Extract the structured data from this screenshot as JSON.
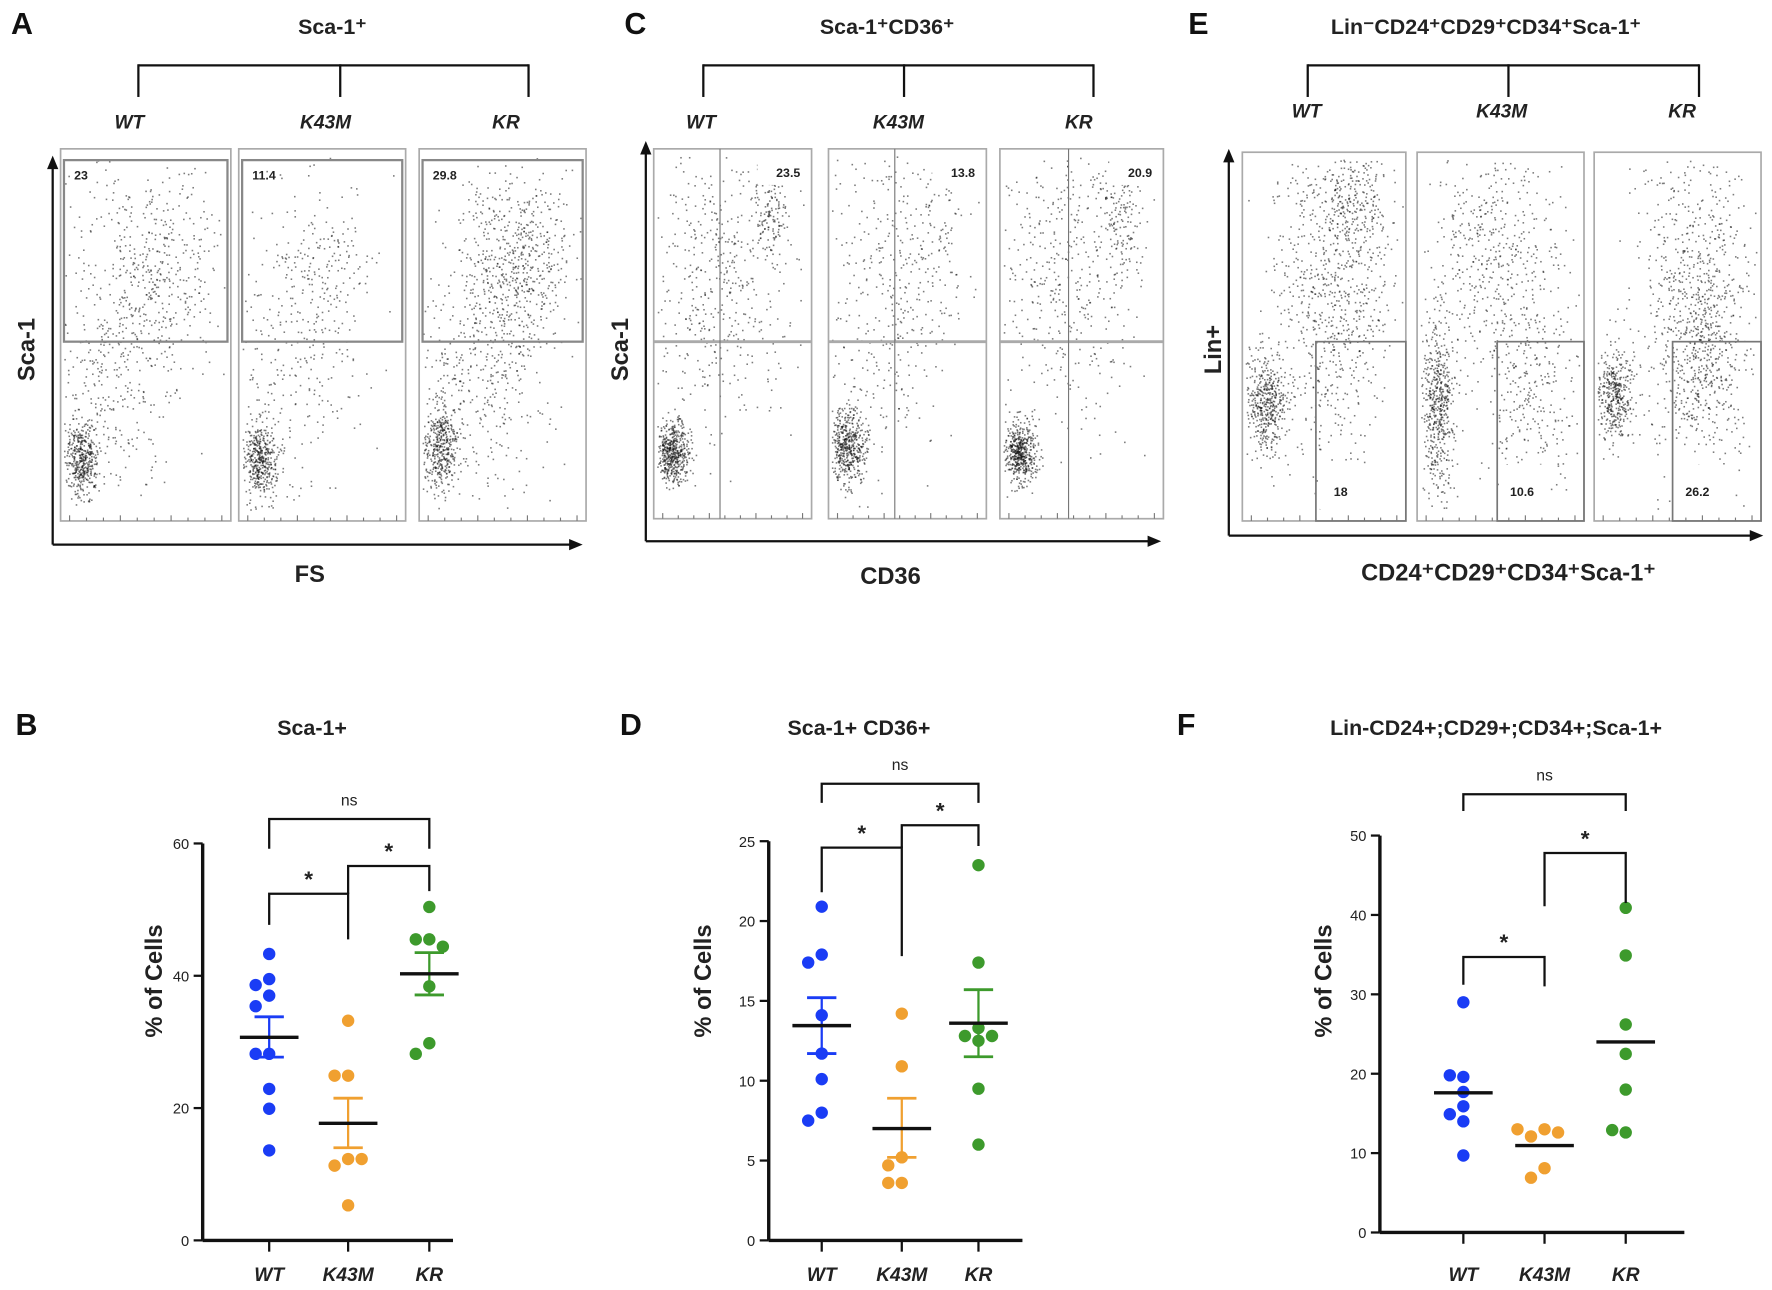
{
  "flow_panels": [
    {
      "letter": "A",
      "title": "Sca-1⁺",
      "groups": [
        "WT",
        "K43M",
        "KR"
      ],
      "ylabel": "Sca-1",
      "xlabel": "FS",
      "gate_values": [
        "23",
        "11.4",
        "29.8"
      ]
    },
    {
      "letter": "C",
      "title": "Sca-1⁺CD36⁺",
      "groups": [
        "WT",
        "K43M",
        "KR"
      ],
      "ylabel": "Sca-1",
      "xlabel": "CD36",
      "gate_values": [
        "23.5",
        "13.8",
        "20.9"
      ]
    },
    {
      "letter": "E",
      "title": "Lin⁻CD24⁺CD29⁺CD34⁺Sca-1⁺",
      "groups": [
        "WT",
        "K43M",
        "KR"
      ],
      "ylabel": "Lin+",
      "xlabel": "CD24⁺CD29⁺CD34⁺Sca-1⁺",
      "gate_values": [
        "18",
        "10.6",
        "26.2"
      ]
    }
  ],
  "chart_data": [
    {
      "panel": "B",
      "type": "scatter",
      "title": "Sca-1+",
      "xlabel": "",
      "ylabel": "% of Cells",
      "categories": [
        "WT",
        "K43M",
        "KR"
      ],
      "ylim": [
        0,
        60
      ],
      "yticks": [
        0,
        20,
        40,
        60
      ],
      "series": [
        {
          "name": "WT",
          "color": "#1a3cf5",
          "values": [
            43.3,
            39.5,
            38.6,
            37.0,
            35.4,
            28.2,
            28.2,
            22.9,
            19.9,
            13.6
          ],
          "mean": 30.7,
          "sem": [
            27.7,
            33.8
          ]
        },
        {
          "name": "K43M",
          "color": "#f0a030",
          "values": [
            33.2,
            24.9,
            24.9,
            12.3,
            11.3,
            12.3,
            5.3
          ],
          "mean": 17.7,
          "sem": [
            14.0,
            21.5
          ]
        },
        {
          "name": "KR",
          "color": "#3d9a2c",
          "values": [
            50.4,
            45.5,
            45.5,
            44.4,
            38.4,
            29.8,
            28.2
          ],
          "mean": 40.3,
          "sem": [
            37.1,
            43.5
          ]
        }
      ],
      "comparisons": [
        {
          "pair": [
            0,
            2
          ],
          "label": "ns",
          "y": 63.7,
          "legs": [
            59.2,
            59.2
          ]
        },
        {
          "pair": [
            0,
            1
          ],
          "label": "*",
          "y": 52.4,
          "legs": [
            47.7,
            45.5
          ]
        },
        {
          "pair": [
            1,
            2
          ],
          "label": "*",
          "y": 56.6,
          "legs": [
            52.4,
            52.8
          ]
        }
      ]
    },
    {
      "panel": "D",
      "type": "scatter",
      "title": "Sca-1+ CD36+",
      "xlabel": "",
      "ylabel": "% of Cells",
      "categories": [
        "WT",
        "K43M",
        "KR"
      ],
      "ylim": [
        0,
        25
      ],
      "yticks": [
        0,
        5,
        10,
        15,
        20,
        25
      ],
      "series": [
        {
          "name": "WT",
          "color": "#1a3cf5",
          "values": [
            20.9,
            17.9,
            17.4,
            14.1,
            11.7,
            10.1,
            8.0,
            7.5
          ],
          "mean": 13.45,
          "sem": [
            11.7,
            15.2
          ]
        },
        {
          "name": "K43M",
          "color": "#f0a030",
          "values": [
            14.2,
            10.9,
            5.2,
            4.7,
            3.6,
            3.6
          ],
          "mean": 7.0,
          "sem": [
            5.2,
            8.9
          ]
        },
        {
          "name": "KR",
          "color": "#3d9a2c",
          "values": [
            23.5,
            17.4,
            13.3,
            12.8,
            12.8,
            12.5,
            9.5,
            6.0
          ],
          "mean": 13.6,
          "sem": [
            11.5,
            15.7
          ]
        }
      ],
      "comparisons": [
        {
          "pair": [
            0,
            2
          ],
          "label": "ns",
          "y": 28.6,
          "legs": [
            27.4,
            27.4
          ]
        },
        {
          "pair": [
            0,
            1
          ],
          "label": "*",
          "y": 24.6,
          "legs": [
            21.8,
            17.8
          ]
        },
        {
          "pair": [
            1,
            2
          ],
          "label": "*",
          "y": 26.0,
          "legs": [
            24.6,
            24.7
          ]
        }
      ]
    },
    {
      "panel": "F",
      "type": "scatter",
      "title": "Lin-CD24+;CD29+;CD34+;Sca-1+",
      "xlabel": "",
      "ylabel": "% of Cells",
      "categories": [
        "WT",
        "K43M",
        "KR"
      ],
      "ylim": [
        0,
        50
      ],
      "yticks": [
        0,
        10,
        20,
        30,
        40,
        50
      ],
      "series": [
        {
          "name": "WT",
          "color": "#1a3cf5",
          "values": [
            29.0,
            19.6,
            19.8,
            17.7,
            15.9,
            14.9,
            14.0,
            9.7
          ],
          "mean": 17.6,
          "sem": null
        },
        {
          "name": "K43M",
          "color": "#f0a030",
          "values": [
            13.0,
            12.1,
            12.6,
            13.0,
            8.1,
            6.9
          ],
          "mean": 10.95,
          "sem": null
        },
        {
          "name": "KR",
          "color": "#3d9a2c",
          "values": [
            40.9,
            34.9,
            26.2,
            22.5,
            18.0,
            12.6,
            12.9
          ],
          "mean": 24.0,
          "sem": null
        }
      ],
      "comparisons": [
        {
          "pair": [
            0,
            2
          ],
          "label": "ns",
          "y": 55.2,
          "legs": [
            53.1,
            53.1
          ]
        },
        {
          "pair": [
            0,
            1
          ],
          "label": "*",
          "y": 34.7,
          "legs": [
            31.2,
            31.0
          ]
        },
        {
          "pair": [
            1,
            2
          ],
          "label": "*",
          "y": 47.8,
          "legs": [
            41.1,
            41.5
          ]
        }
      ]
    }
  ]
}
